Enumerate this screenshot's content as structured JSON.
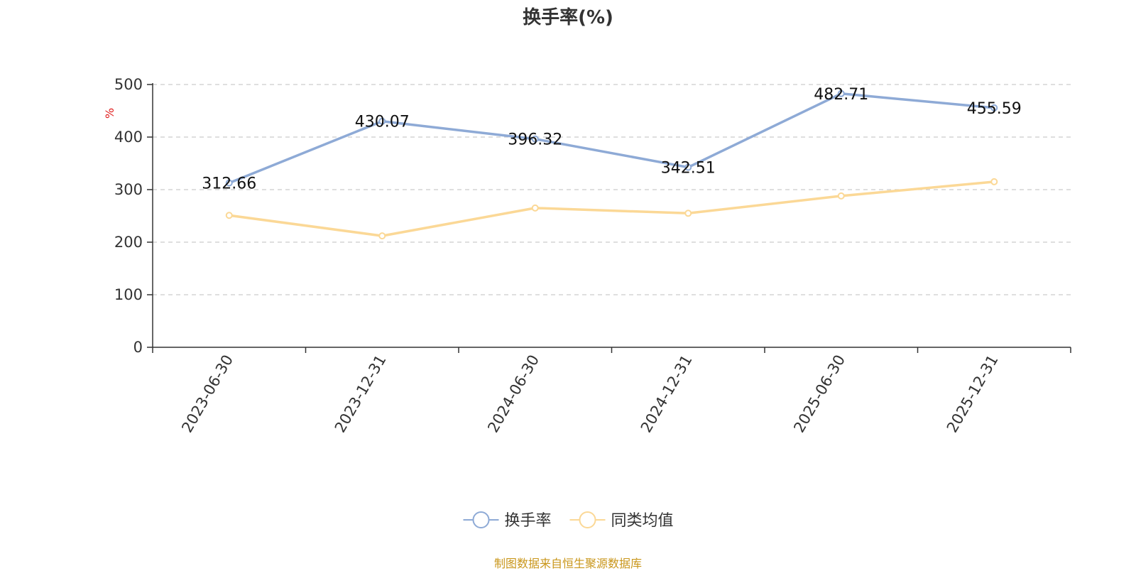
{
  "title": "换手率(%)",
  "footer": "制图数据来自恒生聚源数据库",
  "chart_data": {
    "type": "line",
    "title": "换手率(%)",
    "ylabel": "%",
    "xlabel": "",
    "ylim": [
      0,
      500
    ],
    "yticks": [
      0,
      100,
      200,
      300,
      400,
      500
    ],
    "grid": true,
    "legend_position": "bottom",
    "categories": [
      "2023-06-30",
      "2023-12-31",
      "2024-06-30",
      "2024-12-31",
      "2025-06-30",
      "2025-12-31"
    ],
    "series": [
      {
        "name": "换手率",
        "color": "#8eaad6",
        "values": [
          312.66,
          430.07,
          396.32,
          342.51,
          482.71,
          455.59
        ],
        "show_labels": true
      },
      {
        "name": "同类均值",
        "color": "#fbd896",
        "values": [
          251,
          212,
          265,
          255,
          288,
          315
        ],
        "show_labels": false
      }
    ]
  }
}
